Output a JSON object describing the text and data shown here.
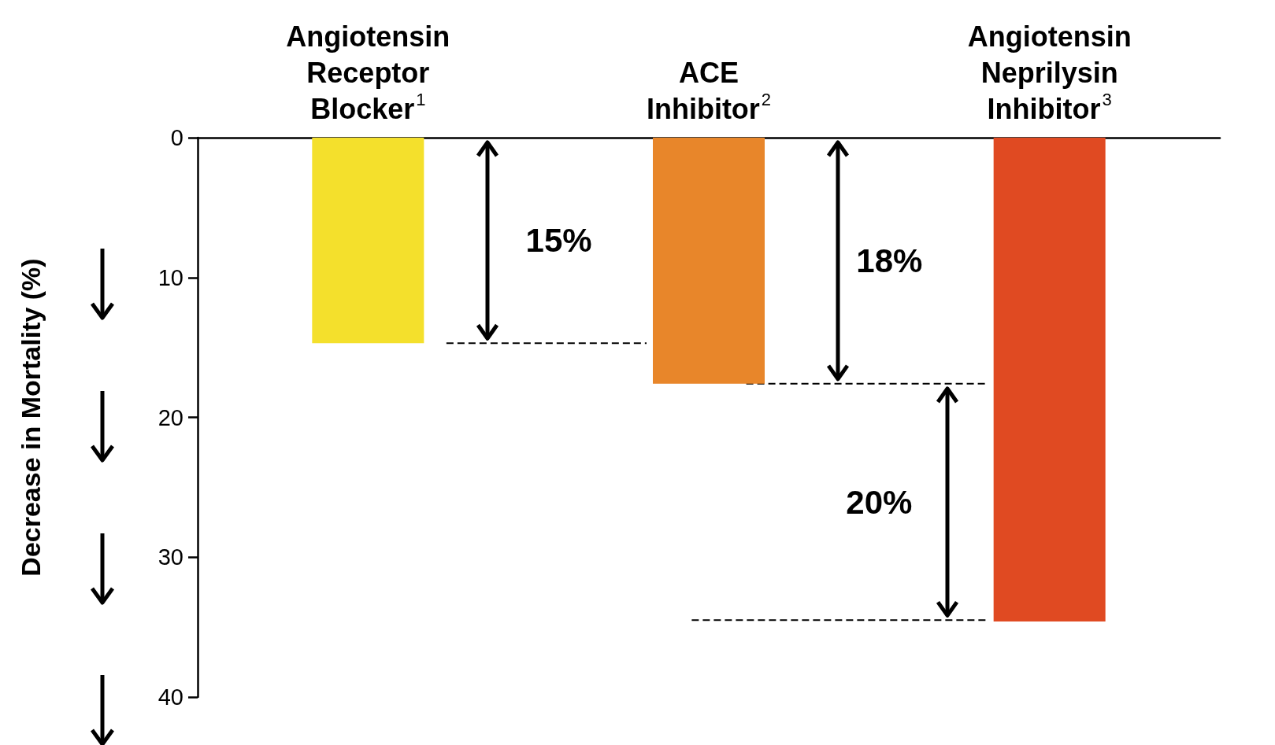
{
  "chart_data": {
    "type": "bar",
    "ylabel": "Decrease in Mortality (%)",
    "categories": [
      "Angiotensin Receptor Blocker$^{1}$",
      "ACE Inhibitor$^{2}$",
      "Angiotensin Neprilysin Inhibitor$^{3}$"
    ],
    "values": [
      14.7,
      17.6,
      34.6
    ],
    "colors": [
      "#f4e02c",
      "#e8862a",
      "#e04a22"
    ],
    "ylim": [
      40,
      0
    ],
    "yticks": [
      0,
      10,
      20,
      30,
      40
    ],
    "grid": false,
    "ref_lines": [
      {
        "axis": "y",
        "value": 14.7,
        "line_style": "dashed"
      },
      {
        "axis": "y",
        "value": 17.6,
        "line_style": "dashed"
      },
      {
        "axis": "y",
        "value": 34.5,
        "line_style": "dashed"
      }
    ],
    "annotations": [
      "15%",
      "18%",
      "20%"
    ]
  }
}
